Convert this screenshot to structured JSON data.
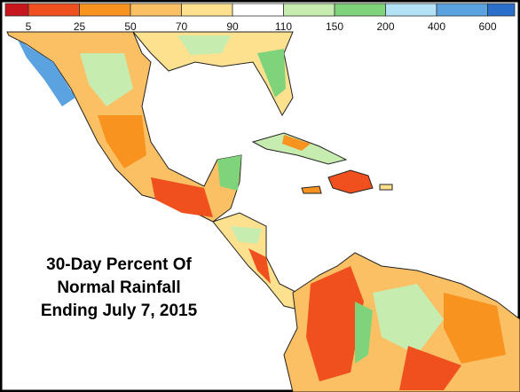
{
  "legend": {
    "labels": [
      5,
      25,
      50,
      70,
      90,
      110,
      150,
      200,
      400,
      600
    ],
    "colors": [
      "#c8161d",
      "#f0501e",
      "#f7931e",
      "#fbc064",
      "#fde18e",
      "#ffffff",
      "#c7ecb0",
      "#7fd37a",
      "#b3e1f5",
      "#5ba3e0",
      "#2a6fc9"
    ]
  },
  "title": {
    "lines": [
      "30-Day Percent Of",
      "Normal Rainfall",
      "Ending July 7, 2015"
    ]
  }
}
